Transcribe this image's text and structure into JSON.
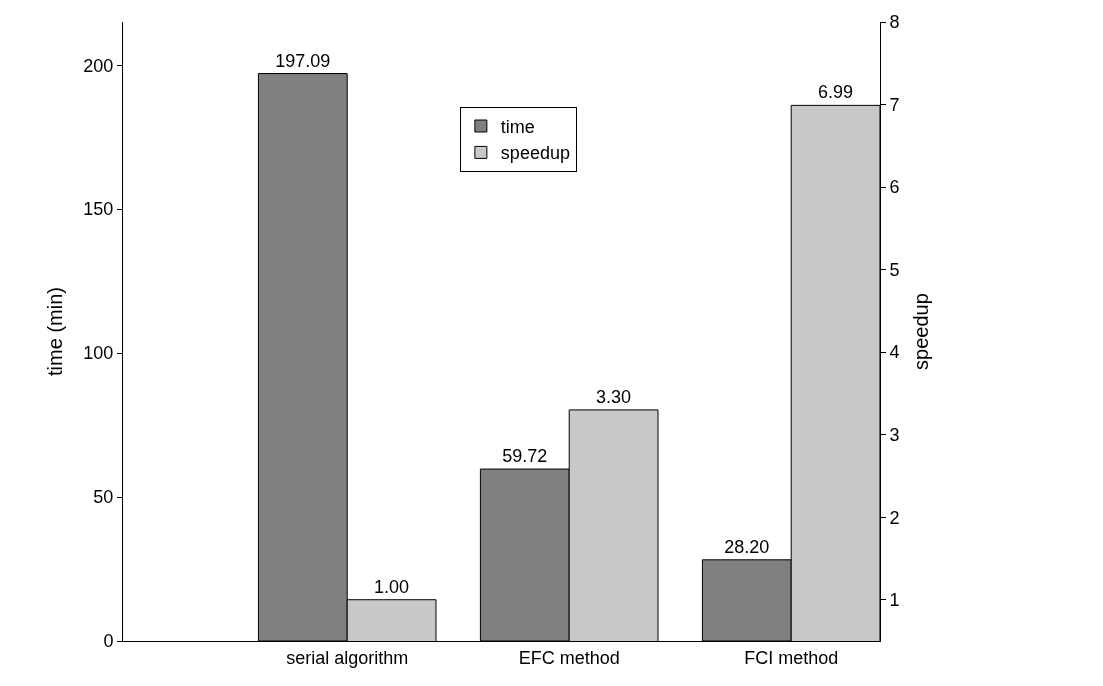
{
  "chart_data": {
    "type": "bar",
    "categories": [
      "serial algorithm",
      "EFC method",
      "FCI method"
    ],
    "series": [
      {
        "name": "time",
        "color": "#808080",
        "values": [
          197.09,
          59.72,
          28.2
        ],
        "value_labels": [
          "197.09",
          "59.72",
          "28.20"
        ]
      },
      {
        "name": "speedup",
        "color": "#c8c8c8",
        "values": [
          1.0,
          3.3,
          6.99
        ],
        "value_labels": [
          "1.00",
          "3.30",
          "6.99"
        ],
        "axis": "y2"
      }
    ],
    "ylabel": "time (min)",
    "y2label": "speedup",
    "ylim": [
      0,
      215
    ],
    "yticks": [
      0,
      50,
      100,
      150,
      200
    ],
    "y2lim": [
      0.5,
      8
    ],
    "y2ticks": [
      1,
      2,
      3,
      4,
      5,
      6,
      7,
      8
    ],
    "legend": "top"
  }
}
